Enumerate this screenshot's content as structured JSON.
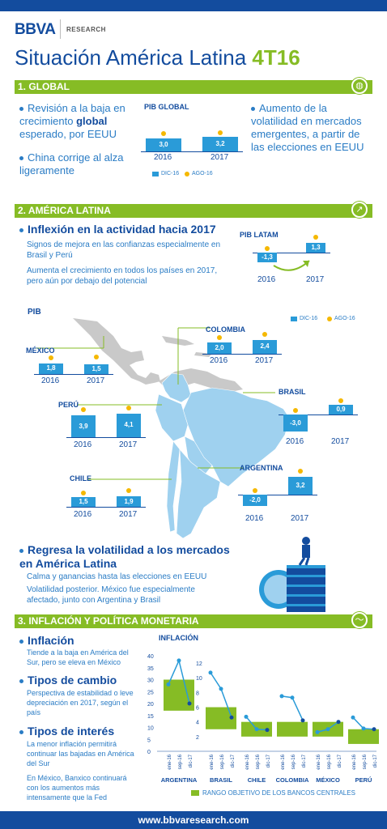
{
  "header": {
    "logo": "BBVA",
    "logo_sub": "RESEARCH",
    "title_main": "Situación América Latina",
    "title_accent": "4T16"
  },
  "global": {
    "section_title": "1. GLOBAL",
    "bullet1_pre": "Revisión a la baja en crecimiento",
    "bullet1_bold": "global",
    "bullet1_post": "esperado, por EEUU",
    "bullet2": "China corrige al alza ligeramente",
    "bullet3": "Aumento de la volatilidad en mercados emergentes, a partir de las elecciones en EEUU",
    "chart_title": "PIB GLOBAL",
    "legend_dic": "DIC-16",
    "legend_ago": "AGO-16"
  },
  "latam": {
    "section_title": "2. AMÉRICA LATINA",
    "heading1": "Inflexión en la actividad hacia 2017",
    "text1": "Signos de mejora en las confianzas especialmente en Brasil y Perú",
    "text2": "Aumenta el crecimiento en todos los países en 2017, pero aún por debajo del potencial",
    "pib_latam_title": "PIB LATAM",
    "pib_title": "PIB",
    "legend_dic": "DIC-16",
    "legend_ago": "AGO-16",
    "heading2": "Regresa la volatilidad a los mercados en América Latina",
    "text3": "Calma y ganancias hasta las elecciones en EEUU",
    "text4": "Volatilidad posterior. México fue especialmente afectado, junto con Argentina y Brasil"
  },
  "inflacion": {
    "section_title": "3. INFLACIÓN Y POLÍTICA MONETARIA",
    "h1": "Inflación",
    "t1": "Tiende a la baja en América del Sur, pero se eleva en México",
    "h2": "Tipos de cambio",
    "t2": "Perspectiva de estabilidad o leve depreciación en 2017, según el país",
    "h3": "Tipos de interés",
    "t3": "La menor inflación permitirá continuar las bajadas en América del Sur",
    "t4": "En México, Banxico continuará con los aumentos más intensamente que la Fed",
    "chart_title": "INFLACIÓN",
    "legend": "RANGO OBJETIVO DE LOS BANCOS CENTRALES"
  },
  "footer": {
    "url": "www.bbvaresearch.com"
  },
  "chart_data": [
    {
      "type": "bar",
      "title": "PIB GLOBAL",
      "categories": [
        "2016",
        "2017"
      ],
      "series": [
        {
          "name": "DIC-16",
          "values": [
            3.0,
            3.2
          ]
        },
        {
          "name": "AGO-16",
          "values": [
            3.1,
            3.3
          ]
        }
      ]
    },
    {
      "type": "bar",
      "title": "PIB LATAM",
      "categories": [
        "2016",
        "2017"
      ],
      "series": [
        {
          "name": "DIC-16",
          "values": [
            -1.3,
            1.3
          ]
        },
        {
          "name": "AGO-16",
          "values": [
            -1.0,
            1.6
          ]
        }
      ]
    },
    {
      "type": "bar",
      "title": "PIB",
      "countries": [
        {
          "name": "MÉXICO",
          "categories": [
            "2016",
            "2017"
          ],
          "dic": [
            1.8,
            1.5
          ],
          "ago": [
            2.1,
            2.3
          ]
        },
        {
          "name": "COLOMBIA",
          "categories": [
            "2016",
            "2017"
          ],
          "dic": [
            2.0,
            2.4
          ],
          "ago": [
            2.2,
            2.7
          ]
        },
        {
          "name": "BRASIL",
          "categories": [
            "2016",
            "2017"
          ],
          "dic": [
            -3.0,
            0.9
          ],
          "ago": [
            -2.9,
            1.0
          ]
        },
        {
          "name": "PERÚ",
          "categories": [
            "2016",
            "2017"
          ],
          "dic": [
            3.9,
            4.1
          ],
          "ago": [
            4.2,
            4.5
          ]
        },
        {
          "name": "CHILE",
          "categories": [
            "2016",
            "2017"
          ],
          "dic": [
            1.5,
            1.9
          ],
          "ago": [
            1.7,
            2.1
          ]
        },
        {
          "name": "ARGENTINA",
          "categories": [
            "2016",
            "2017"
          ],
          "dic": [
            -2.0,
            3.2
          ],
          "ago": [
            -1.6,
            3.5
          ]
        }
      ]
    },
    {
      "type": "line",
      "title": "INFLACIÓN",
      "ylim": [
        0,
        40
      ],
      "yticks_left": [
        0,
        5,
        10,
        15,
        20,
        25,
        30,
        35,
        40
      ],
      "yticks_right": [
        2,
        4,
        6,
        8,
        10,
        12
      ],
      "point_labels": [
        "ene-16",
        "sep-16",
        "dic-17"
      ],
      "countries": [
        {
          "name": "ARGENTINA",
          "values": [
            28,
            38,
            20
          ],
          "target": [
            17,
            30
          ]
        },
        {
          "name": "BRASIL",
          "values": [
            10.7,
            8.5,
            4.6
          ],
          "target": [
            3,
            6
          ]
        },
        {
          "name": "CHILE",
          "values": [
            4.7,
            3.0,
            2.9
          ],
          "target": [
            2,
            4
          ]
        },
        {
          "name": "COLOMBIA",
          "values": [
            7.5,
            7.3,
            4.2
          ],
          "target": [
            2,
            4
          ]
        },
        {
          "name": "MÉXICO",
          "values": [
            2.6,
            3.0,
            4.0
          ],
          "target": [
            2,
            4
          ]
        },
        {
          "name": "PERÚ",
          "values": [
            4.6,
            3.1,
            3.0
          ],
          "target": [
            1,
            3
          ]
        }
      ]
    }
  ]
}
